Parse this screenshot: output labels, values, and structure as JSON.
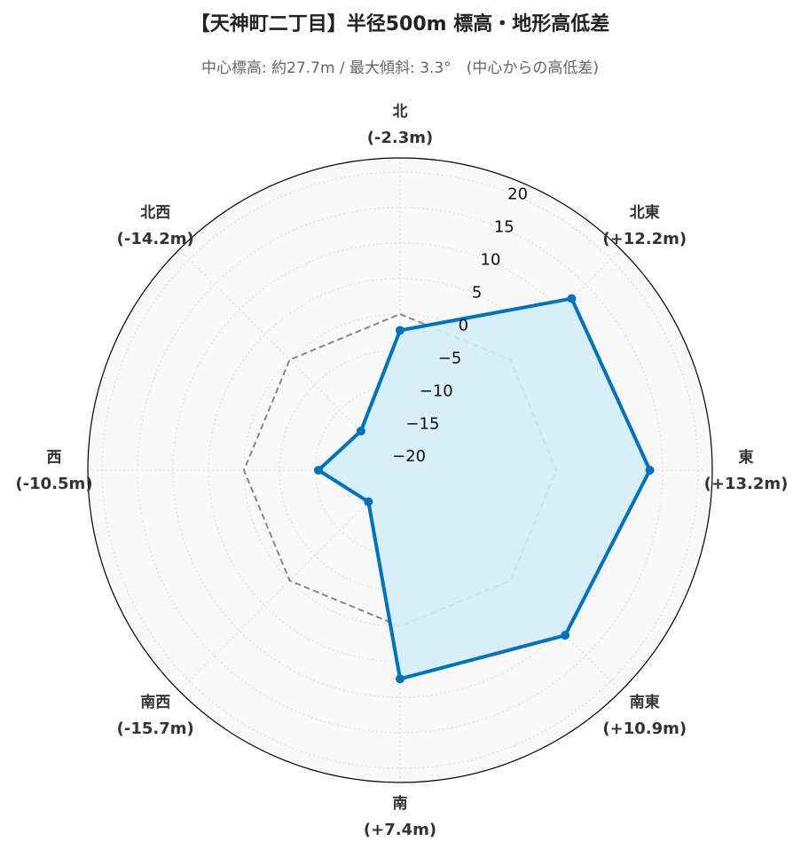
{
  "chart_data": {
    "type": "radar",
    "title": "【天神町二丁目】半径500m 標高・地形高低差",
    "subtitle": "中心標高: 約27.7m / 最大傾斜: 3.3°　(中心からの高低差)",
    "categories": [
      "北",
      "北東",
      "東",
      "南東",
      "南",
      "南西",
      "西",
      "北西"
    ],
    "values": [
      -2.3,
      12.2,
      13.2,
      10.9,
      7.4,
      -15.7,
      -10.5,
      -14.2
    ],
    "value_labels": [
      "(-2.3m)",
      "(+12.2m)",
      "(+13.2m)",
      "(+10.9m)",
      "(+7.4m)",
      "(-15.7m)",
      "(-10.5m)",
      "(-14.2m)"
    ],
    "color": "#0072b8",
    "fill_color": "#d4ecf8",
    "ylim": [
      -22,
      22
    ],
    "yticks": [
      {
        "value": -20,
        "label": "−20"
      },
      {
        "value": -15,
        "label": "−15"
      },
      {
        "value": -10,
        "label": "−10"
      },
      {
        "value": -5,
        "label": "−5"
      },
      0,
      5,
      10,
      15,
      20
    ],
    "grid": true
  }
}
